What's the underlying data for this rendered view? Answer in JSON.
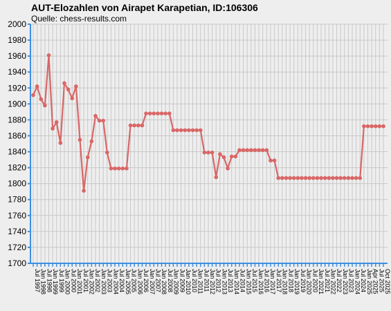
{
  "chart_data": {
    "type": "line",
    "title": "AUT-Elozahlen von Airapet Karapetian, ID:106306",
    "subtitle": "Quelle: chess-results.com",
    "ylim": [
      1700,
      2000
    ],
    "yticks": [
      1700,
      1720,
      1740,
      1760,
      1780,
      1800,
      1820,
      1840,
      1860,
      1880,
      1900,
      1920,
      1940,
      1960,
      1980,
      2000
    ],
    "grid": true,
    "colors": {
      "line": "#d96666",
      "axis": "#3d8fe0",
      "grid": "#c8c8c8",
      "background": "#eeeeee"
    },
    "x_tick_labels": [
      "Jul 1997",
      "Jan 1998",
      "Jul 1998",
      "Jan 1999",
      "Jul 1999",
      "Jan 2000",
      "Jul 2000",
      "Jan 2001",
      "Jul 2001",
      "Jan 2002",
      "Jul 2002",
      "Jan 2003",
      "Jul 2003",
      "Jan 2004",
      "Jul 2004",
      "Jan 2005",
      "Jul 2005",
      "Jan 2006",
      "Jul 2006",
      "Jan 2007",
      "Jul 2007",
      "Jan 2008",
      "Jul 2008",
      "Jan 2009",
      "Jul 2009",
      "Jan 2010",
      "Jul 2010",
      "Jan 2011",
      "Jul 2011",
      "Jan 2012",
      "Jul 2012",
      "Jan 2013",
      "Jul 2013",
      "Jan 2014",
      "Jul 2014",
      "Jan 2015",
      "Jul 2015",
      "Jan 2016",
      "Jul 2016",
      "Jan 2017",
      "Jul 2017",
      "Jan 2018",
      "Jul 2018",
      "Jan 2019",
      "Jul 2019",
      "Jan 2020",
      "Jul 2020",
      "Jan 2021",
      "Jul 2021",
      "Jan 2022",
      "Jul 2022",
      "Jan 2023",
      "Jul 2023",
      "Jan 2024",
      "Jul 2024",
      "Jan 2025",
      "Apr 2025",
      "Jul 2025",
      "Oct 2025"
    ],
    "series": [
      {
        "values": [
          1911,
          1922,
          1906,
          1898,
          1961,
          1869,
          1877,
          1851,
          1926,
          1918,
          1907,
          1922,
          1855,
          1791,
          1833,
          1853,
          1885,
          1879,
          1879,
          1839,
          1819,
          1819,
          1819,
          1819,
          1819,
          1873,
          1873,
          1873,
          1873,
          1888,
          1888,
          1888,
          1888,
          1888,
          1888,
          1888,
          1867,
          1867,
          1867,
          1867,
          1867,
          1867,
          1867,
          1867,
          1839,
          1839,
          1839,
          1808,
          1837,
          1833,
          1819,
          1834,
          1834,
          1842,
          1842,
          1842,
          1842,
          1842,
          1842,
          1842,
          1842,
          1829,
          1829,
          1807,
          1807,
          1807,
          1807,
          1807,
          1807,
          1807,
          1807,
          1807,
          1807,
          1807,
          1807,
          1807,
          1807,
          1807,
          1807,
          1807,
          1807,
          1807,
          1807,
          1807,
          1807,
          1872,
          1872,
          1872,
          1872,
          1872,
          1872
        ]
      }
    ]
  }
}
